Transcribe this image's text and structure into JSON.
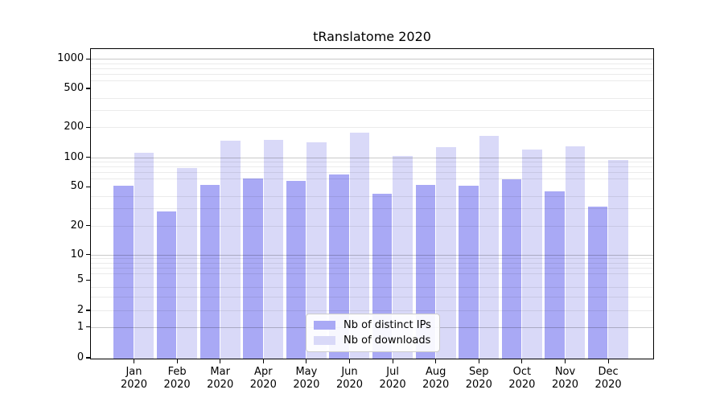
{
  "title": "tRanslatome 2020",
  "chart_data": {
    "type": "bar",
    "title": "tRanslatome 2020",
    "categories": [
      "Jan 2020",
      "Feb 2020",
      "Mar 2020",
      "Apr 2020",
      "May 2020",
      "Jun 2020",
      "Jul 2020",
      "Aug 2020",
      "Sep 2020",
      "Oct 2020",
      "Nov 2020",
      "Dec 2020"
    ],
    "series": [
      {
        "name": "Nb of distinct IPs",
        "color": "#a9a9f5",
        "values": [
          51,
          28,
          52,
          61,
          57,
          66,
          42,
          52,
          51,
          59,
          45,
          31
        ]
      },
      {
        "name": "Nb of downloads",
        "color": "#d9d9f8",
        "values": [
          110,
          77,
          145,
          150,
          142,
          175,
          103,
          127,
          164,
          120,
          128,
          94
        ]
      }
    ],
    "yscale": "symlog",
    "ylim": [
      0,
      1270
    ],
    "y_ticks": [
      1000,
      500,
      200,
      100,
      50,
      20,
      10,
      5,
      2,
      1,
      0
    ],
    "y_major_gridlines": [
      1,
      10,
      100,
      1000
    ],
    "y_minor_gridlines": [
      2,
      3,
      4,
      6,
      7,
      8,
      9,
      20,
      30,
      40,
      60,
      70,
      80,
      90,
      200,
      300,
      400,
      600,
      700,
      800,
      900
    ],
    "grid": true,
    "legend_position": "lower center",
    "xlabel": "",
    "ylabel": ""
  },
  "colors": {
    "background": "#ffffff",
    "bar_distinct_ips": "#a9a9f5",
    "bar_downloads": "#d9d9f8",
    "grid_major": "#cccccc",
    "grid_minor": "#ebebeb",
    "axis": "#000000",
    "legend_border": "#cccccc"
  }
}
